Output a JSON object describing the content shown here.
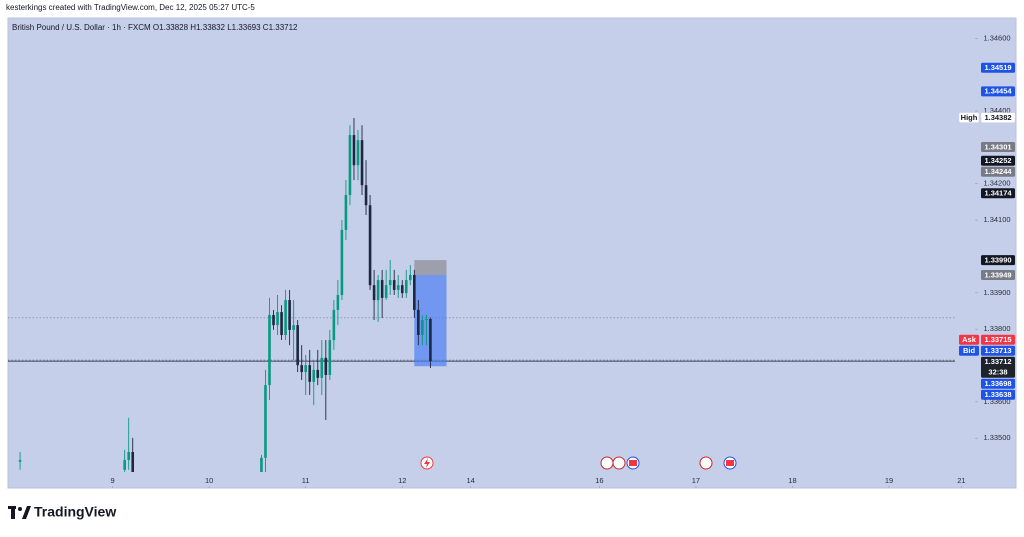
{
  "header": {
    "credit": "kesterkings created with TradingView.com, Dec 12, 2025 05:27 UTC-5",
    "legend": "British Pound / U.S. Dollar · 1h · FXCM   O1.33828  H1.33832  L1.33693  C1.33712"
  },
  "chart_data": {
    "type": "candlestick",
    "x": [
      -23,
      3,
      4,
      5,
      37,
      38,
      39,
      40,
      41,
      42,
      43,
      44,
      45,
      46,
      47,
      48,
      49,
      50,
      51,
      52,
      53,
      54,
      55,
      56,
      57,
      58,
      59,
      60,
      61,
      62,
      63,
      64,
      65,
      66,
      67,
      68,
      69,
      70,
      71,
      72,
      73,
      74,
      75,
      76,
      77,
      78,
      79
    ],
    "open": [
      1.33435,
      1.33413,
      1.3344,
      1.33462,
      1.33407,
      1.33446,
      1.33646,
      1.33839,
      1.33811,
      1.33847,
      1.33784,
      1.3388,
      1.33798,
      1.33811,
      1.33701,
      1.33682,
      1.33701,
      1.33655,
      1.33688,
      1.33666,
      1.33721,
      1.33674,
      1.3377,
      1.33853,
      1.33894,
      1.34073,
      1.34169,
      1.34334,
      1.34251,
      1.3432,
      1.34196,
      1.34141,
      1.33921,
      1.3388,
      1.33935,
      1.33886,
      1.33921,
      1.33935,
      1.33908,
      1.33921,
      1.33899,
      1.33935,
      1.33949,
      1.33853,
      1.33784,
      1.33825,
      1.33828
    ],
    "high": [
      1.33462,
      1.33468,
      1.33556,
      1.33501,
      1.33454,
      1.33688,
      1.33886,
      1.33853,
      1.33894,
      1.33866,
      1.33908,
      1.33908,
      1.3388,
      1.33825,
      1.33756,
      1.33729,
      1.33743,
      1.33715,
      1.33743,
      1.3377,
      1.3377,
      1.33798,
      1.3388,
      1.33935,
      1.341,
      1.3421,
      1.34361,
      1.34381,
      1.34348,
      1.34361,
      1.34265,
      1.34169,
      1.33963,
      1.33949,
      1.33963,
      1.33963,
      1.3399,
      1.33963,
      1.33949,
      1.33935,
      1.33963,
      1.33976,
      1.33963,
      1.3388,
      1.33839,
      1.33839,
      1.33832
    ],
    "low": [
      1.33413,
      1.33407,
      1.33413,
      1.33407,
      1.33407,
      1.33407,
      1.33605,
      1.33798,
      1.33784,
      1.3377,
      1.3377,
      1.33756,
      1.33715,
      1.33682,
      1.3366,
      1.33619,
      1.33619,
      1.33591,
      1.33646,
      1.33619,
      1.3355,
      1.3366,
      1.33743,
      1.33811,
      1.3388,
      1.34045,
      1.34141,
      1.3421,
      1.3421,
      1.34169,
      1.34114,
      1.33908,
      1.33825,
      1.3382,
      1.33831,
      1.3388,
      1.33894,
      1.33894,
      1.33886,
      1.33886,
      1.33886,
      1.33921,
      1.33831,
      1.33756,
      1.33756,
      1.33756,
      1.33693
    ],
    "close": [
      1.3344,
      1.3344,
      1.33462,
      1.33407,
      1.33446,
      1.33646,
      1.33839,
      1.33811,
      1.33847,
      1.33784,
      1.3388,
      1.33798,
      1.33811,
      1.33701,
      1.33682,
      1.33701,
      1.33655,
      1.33688,
      1.33666,
      1.33721,
      1.33674,
      1.3377,
      1.33853,
      1.33894,
      1.34073,
      1.34169,
      1.34334,
      1.34251,
      1.3432,
      1.34196,
      1.34141,
      1.33921,
      1.3388,
      1.33935,
      1.33886,
      1.33921,
      1.33935,
      1.33908,
      1.33921,
      1.33899,
      1.33935,
      1.33949,
      1.33853,
      1.33784,
      1.33825,
      1.33828,
      1.33712
    ],
    "up_color": "#089981",
    "down_color": "#1e2742",
    "xlim": [
      -26,
      209.4
    ],
    "ylim": [
      1.33363,
      1.34656
    ],
    "xticks": [
      {
        "value": 0,
        "label": "9"
      },
      {
        "value": 24,
        "label": "10"
      },
      {
        "value": 48,
        "label": "11"
      },
      {
        "value": 72,
        "label": "12"
      },
      {
        "value": 89,
        "label": "14"
      },
      {
        "value": 121,
        "label": "16"
      },
      {
        "value": 145,
        "label": "17"
      },
      {
        "value": 169,
        "label": "18"
      },
      {
        "value": 193,
        "label": "19"
      },
      {
        "value": 211,
        "label": "21"
      }
    ],
    "yticks": [
      {
        "value": 1.346,
        "label": "1.34600"
      },
      {
        "value": 1.344,
        "label": "1.34400"
      },
      {
        "value": 1.342,
        "label": "1.34200"
      },
      {
        "value": 1.341,
        "label": "1.34100"
      },
      {
        "value": 1.339,
        "label": "1.33900"
      },
      {
        "value": 1.338,
        "label": "1.33800"
      },
      {
        "value": 1.336,
        "label": "1.33600"
      },
      {
        "value": 1.335,
        "label": "1.33500"
      }
    ],
    "price_lines": [
      {
        "value": 1.33831,
        "style": "dotted"
      },
      {
        "value": 1.33715,
        "style": "dotted"
      },
      {
        "value": 1.33712,
        "style": "solid"
      }
    ],
    "position": {
      "x": [
        75,
        83
      ],
      "stop": 1.3399,
      "entry": 1.33949,
      "target": 1.33698,
      "stop_color": "#9598a1",
      "target_color": "#4d7ff2"
    },
    "price_badges": [
      {
        "value": 1.34519,
        "label": "1.34519",
        "color": "#1e53e5"
      },
      {
        "value": 1.34454,
        "label": "1.34454",
        "color": "#1e53e5"
      },
      {
        "tag": "High",
        "value": 1.34382,
        "label": "1.34382",
        "color": "#ffffff"
      },
      {
        "value": 1.34301,
        "label": "1.34301",
        "color": "#787b86"
      },
      {
        "value": 1.34252,
        "label": "1.34252",
        "color": "#131722"
      },
      {
        "value": 1.34244,
        "label": "1.34244",
        "color": "#787b86"
      },
      {
        "value": 1.34174,
        "label": "1.34174",
        "color": "#131722"
      },
      {
        "value": 1.3399,
        "label": "1.33990",
        "color": "#131722"
      },
      {
        "value": 1.33949,
        "label": "1.33949",
        "color": "#787b86"
      },
      {
        "tag": "Ask",
        "value": 1.33715,
        "label": "1.33715",
        "color": "#f23645"
      },
      {
        "tag": "Bid",
        "value": 1.33713,
        "label": "1.33713",
        "color": "#1e53e5"
      },
      {
        "value": 1.33712,
        "label": "1.33712",
        "sub": "32:38",
        "color": "#1e222d"
      },
      {
        "value": 1.33698,
        "label": "1.33698",
        "color": "#1e53e5"
      },
      {
        "value": 1.33638,
        "label": "1.33638",
        "color": "#1e53e5"
      }
    ],
    "brand": "TradingView"
  }
}
